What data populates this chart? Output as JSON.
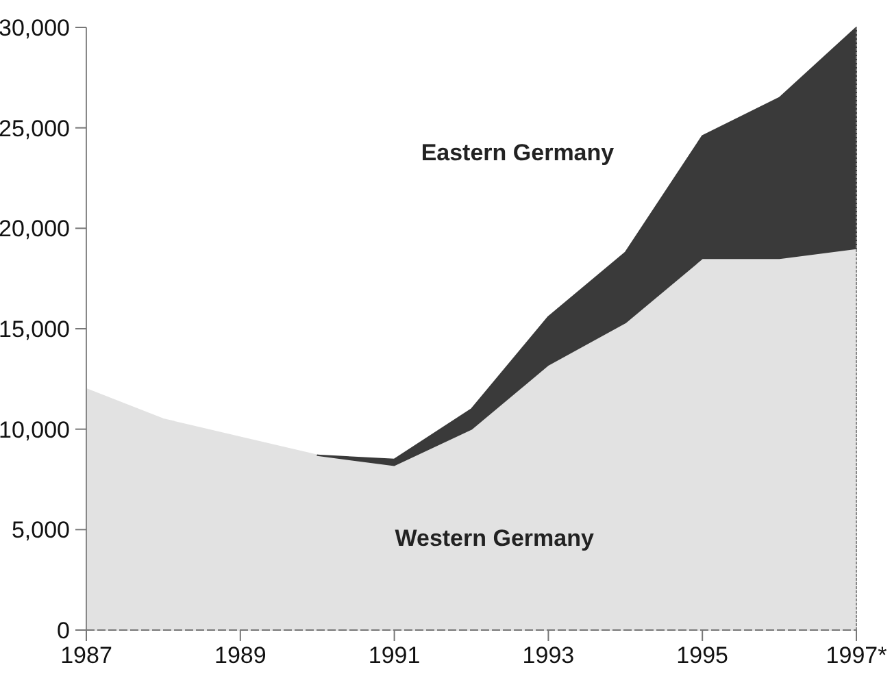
{
  "chart_data": {
    "type": "area",
    "stacked": true,
    "x": [
      1987,
      1988,
      1989,
      1990,
      1991,
      1992,
      1993,
      1994,
      1995,
      1996,
      1997
    ],
    "series": [
      {
        "name": "Western Germany",
        "color": "#e2e2e2",
        "values": [
          12000,
          10500,
          9600,
          8700,
          8200,
          10000,
          13200,
          15300,
          18500,
          18500,
          19000
        ]
      },
      {
        "name": "Eastern Germany",
        "color": "#3a3a3a",
        "values": [
          null,
          null,
          null,
          0,
          300,
          1000,
          2400,
          3500,
          6100,
          8000,
          11000
        ]
      }
    ],
    "xlim": [
      1987,
      1997
    ],
    "xticks": [
      1987,
      1989,
      1991,
      1993,
      1995,
      {
        "value": 1997,
        "label": "1997*"
      }
    ],
    "ylim": [
      0,
      30000
    ],
    "yticks": [
      {
        "value": 0,
        "label": "0"
      },
      {
        "value": 5000,
        "label": "5,000"
      },
      {
        "value": 10000,
        "label": "10,000"
      },
      {
        "value": 15000,
        "label": "15,000"
      },
      {
        "value": 20000,
        "label": "20,000"
      },
      {
        "value": 25000,
        "label": "25,000"
      },
      {
        "value": 30000,
        "label": "30,000"
      }
    ],
    "grid": false,
    "legend": false
  }
}
